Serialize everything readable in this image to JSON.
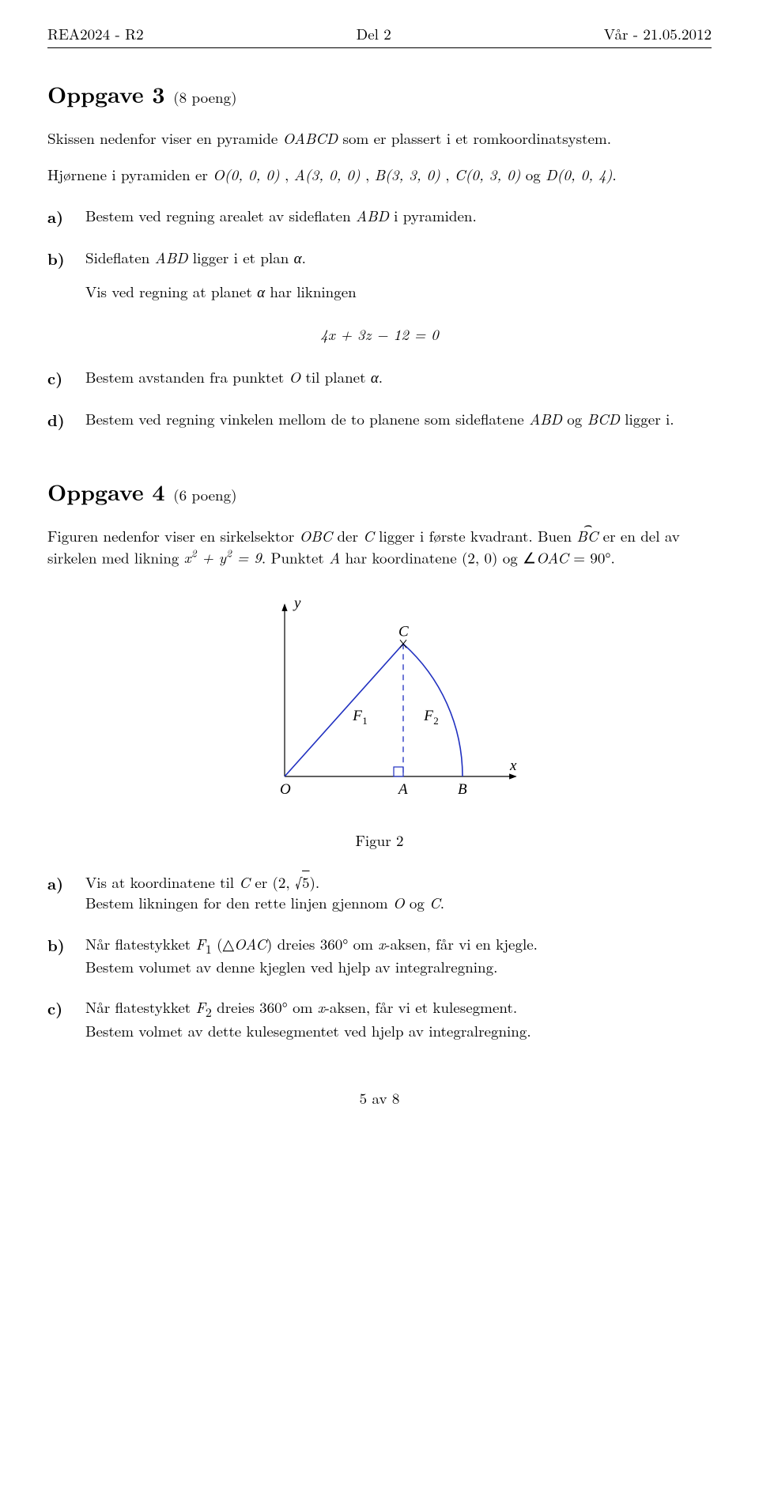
{
  "header": {
    "left": "REA2024 - R2",
    "center": "Del 2",
    "right": "Vår - 21.05.2012"
  },
  "task3": {
    "title": "Oppgave 3",
    "points": "(8 poeng)",
    "intro1_a": "Skissen nedenfor viser en pyramide ",
    "intro1_b": " som er plassert i et romkoordinatsystem.",
    "intro2_a": "Hjørnene i pyramiden er ",
    "intro2_b": " og ",
    "pyramid_name": "OABCD",
    "pointO": "O(0, 0, 0)",
    "pointA": "A(3, 0, 0)",
    "pointB": "B(3, 3, 0)",
    "pointC": "C(0, 3, 0)",
    "pointD": "D(0, 0, 4)",
    "a": {
      "label": "a)",
      "text_a": "Bestem ved regning arealet av sideflaten ",
      "abd": "ABD",
      "text_b": " i pyramiden."
    },
    "b": {
      "label": "b)",
      "text_a": "Sideflaten ",
      "abd": "ABD",
      "text_b": " ligger i et plan ",
      "alpha": "α",
      "vis_a": "Vis ved regning at planet ",
      "vis_b": " har likningen"
    },
    "equation": "4x + 3z − 12 = 0",
    "c": {
      "label": "c)",
      "text_a": "Bestem avstanden fra punktet ",
      "o": "O",
      "text_b": " til planet ",
      "alpha": "α"
    },
    "d": {
      "label": "d)",
      "text_a": "Bestem ved regning vinkelen mellom de to planene som sideflatene ",
      "abd": "ABD",
      "text_b": " og ",
      "bcd": "BCD",
      "text_c": " ligger i."
    }
  },
  "task4": {
    "title": "Oppgave 4",
    "points": "(6 poeng)",
    "intro_a": "Figuren nedenfor viser en sirkelsektor ",
    "obc": "OBC",
    "intro_b": " der ",
    "c": "C",
    "intro_c": " ligger i første kvadrant. Buen ",
    "arc": "BC",
    "intro_d": " er en del av sirkelen med likning ",
    "circle_eq": "x² + y² = 9",
    "intro_e": ". Punktet ",
    "a": "A",
    "intro_f": " har koordinatene (2, 0) og ∠",
    "oac": "OAC",
    "intro_g": " = 90°.",
    "figure": {
      "caption": "Figur 2",
      "y_label": "y",
      "x_label": "x",
      "label_C": "C",
      "label_F1": "F₁",
      "label_F2": "F₂",
      "label_O": "O",
      "label_A": "A",
      "label_B": "B",
      "line_color": "#2030c0",
      "dash_color": "#2030c0",
      "axis_color": "#000000",
      "stroke_width": 1.6,
      "axis_width": 1.2
    },
    "qa": {
      "label": "a)",
      "line1_a": "Vis at koordinatene til ",
      "line1_b": " er (2, ",
      "sqrt5": "√5",
      "line1_c": ").",
      "line2_a": "Bestem likningen for den rette linjen gjennom ",
      "line2_b": " og "
    },
    "qb": {
      "label": "b)",
      "line1_a": "Når flatestykket ",
      "f1": "F₁",
      "line1_b": " (△",
      "oac": "OAC",
      "line1_c": ") dreies 360° om ",
      "x": "x",
      "line1_d": "-aksen, får vi en kjegle.",
      "line2": "Bestem volumet av denne kjeglen ved hjelp av integralregning."
    },
    "qc": {
      "label": "c)",
      "line1_a": "Når flatestykket ",
      "f2": "F₂",
      "line1_b": " dreies 360° om ",
      "x": "x",
      "line1_c": "-aksen, får vi et kulesegment.",
      "line2": "Bestem volmet av dette kulesegmentet ved hjelp av integralregning."
    }
  },
  "pagenum": "5 av 8"
}
